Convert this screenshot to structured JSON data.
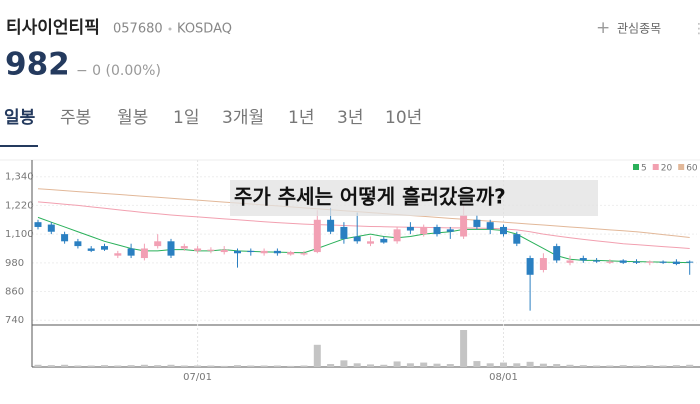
{
  "header": {
    "name": "티사이언티픽",
    "code": "057680",
    "market": "KOSDAQ",
    "watch": "관심종목",
    "price": "982",
    "change": "− 0 (0.00%)"
  },
  "tabs": [
    "일봉",
    "주봉",
    "월봉",
    "1일",
    "3개월",
    "1년",
    "3년",
    "10년"
  ],
  "chart_data": {
    "type": "candlestick",
    "annotation": "주가 추세는 어떻게 흘러갔을까?",
    "categories": [
      null,
      null,
      null,
      null,
      null,
      null,
      null,
      null,
      null,
      null,
      null,
      null,
      "07/01",
      null,
      null,
      null,
      null,
      null,
      null,
      null,
      null,
      null,
      null,
      null,
      null,
      null,
      null,
      null,
      null,
      null,
      null,
      null,
      null,
      null,
      null,
      "08/01",
      null,
      null,
      null,
      null,
      null,
      null,
      null,
      null,
      null,
      null,
      null,
      null,
      null,
      null
    ],
    "open": [
      1150,
      1140,
      1100,
      1070,
      1040,
      1050,
      1010,
      1040,
      1000,
      1050,
      1070,
      1040,
      1030,
      1030,
      1025,
      1030,
      1030,
      1020,
      1030,
      1015,
      1015,
      1025,
      1160,
      1130,
      1090,
      1060,
      1080,
      1070,
      1130,
      1100,
      1130,
      1120,
      1090,
      1160,
      1150,
      1130,
      1100,
      1000,
      950,
      1050,
      980,
      1000,
      990,
      980,
      990,
      985,
      980,
      985,
      985,
      985
    ],
    "high": [
      1160,
      1150,
      1110,
      1080,
      1050,
      1060,
      1030,
      1060,
      1060,
      1100,
      1080,
      1060,
      1050,
      1045,
      1050,
      1040,
      1040,
      1040,
      1040,
      1030,
      1030,
      1200,
      1210,
      1150,
      1190,
      1090,
      1090,
      1130,
      1150,
      1140,
      1140,
      1130,
      1220,
      1180,
      1160,
      1140,
      1110,
      1010,
      1020,
      1060,
      1010,
      1010,
      1000,
      995,
      995,
      995,
      990,
      990,
      995,
      990
    ],
    "low": [
      1120,
      1100,
      1060,
      1040,
      1025,
      1030,
      1000,
      1000,
      990,
      1040,
      1000,
      1030,
      1020,
      1020,
      1015,
      960,
      1010,
      1010,
      1010,
      1010,
      1010,
      1020,
      1100,
      1060,
      1060,
      1050,
      1060,
      1060,
      1100,
      1090,
      1090,
      1080,
      1080,
      1120,
      1100,
      1090,
      1050,
      780,
      940,
      980,
      970,
      980,
      980,
      975,
      975,
      975,
      970,
      975,
      970,
      930
    ],
    "close": [
      1130,
      1110,
      1070,
      1050,
      1030,
      1035,
      1020,
      1010,
      1040,
      1070,
      1010,
      1050,
      1040,
      1035,
      1035,
      1020,
      1025,
      1030,
      1020,
      1025,
      1020,
      1160,
      1110,
      1080,
      1070,
      1070,
      1065,
      1120,
      1115,
      1130,
      1100,
      1110,
      1180,
      1130,
      1120,
      1100,
      1060,
      930,
      1000,
      990,
      990,
      990,
      985,
      985,
      980,
      980,
      985,
      980,
      975,
      982
    ],
    "volume": [
      6,
      5,
      6,
      4,
      4,
      5,
      4,
      5,
      6,
      5,
      6,
      4,
      4,
      4,
      3,
      5,
      4,
      4,
      4,
      3,
      4,
      60,
      8,
      18,
      10,
      7,
      6,
      15,
      10,
      12,
      9,
      8,
      100,
      16,
      10,
      12,
      10,
      14,
      9,
      8,
      6,
      5,
      4,
      4,
      5,
      4,
      5,
      4,
      5,
      6
    ],
    "volume_ylim": [
      0,
      100
    ],
    "series": [
      {
        "name": "5",
        "color": "#2ab05a",
        "values": [
          1170,
          1150,
          1130,
          1110,
          1090,
          1070,
          1055,
          1040,
          1030,
          1030,
          1035,
          1035,
          1030,
          1030,
          1035,
          1030,
          1028,
          1026,
          1025,
          1023,
          1022,
          1040,
          1060,
          1080,
          1090,
          1100,
          1090,
          1085,
          1090,
          1100,
          1105,
          1110,
          1120,
          1120,
          1120,
          1115,
          1100,
          1070,
          1040,
          1010,
          995,
          990,
          990,
          988,
          986,
          985,
          984,
          983,
          982,
          981
        ]
      },
      {
        "name": "20",
        "color": "#f2a0b0",
        "values": [
          1235,
          1230,
          1225,
          1220,
          1214,
          1208,
          1202,
          1196,
          1190,
          1185,
          1180,
          1176,
          1172,
          1168,
          1164,
          1160,
          1156,
          1152,
          1148,
          1145,
          1142,
          1140,
          1138,
          1136,
          1134,
          1132,
          1131,
          1130,
          1129,
          1128,
          1127,
          1126,
          1126,
          1125,
          1124,
          1122,
          1118,
          1110,
          1100,
          1092,
          1085,
          1078,
          1072,
          1066,
          1060,
          1056,
          1052,
          1048,
          1044,
          1040
        ]
      },
      {
        "name": "60",
        "color": "#e2b899",
        "values": [
          1290,
          1286,
          1282,
          1278,
          1274,
          1270,
          1266,
          1262,
          1258,
          1254,
          1250,
          1246,
          1242,
          1238,
          1234,
          1230,
          1226,
          1222,
          1218,
          1214,
          1210,
          1206,
          1202,
          1198,
          1194,
          1190,
          1186,
          1182,
          1178,
          1174,
          1170,
          1166,
          1162,
          1158,
          1154,
          1150,
          1146,
          1142,
          1138,
          1134,
          1130,
          1126,
          1122,
          1118,
          1114,
          1110,
          1104,
          1098,
          1092,
          1086
        ]
      }
    ],
    "up_color": "#f2a0b4",
    "down_color": "#2a7fc1",
    "volume_color": "#c4c4c4",
    "ylim": [
      720,
      1410
    ],
    "yticks": [
      {
        "value": 740,
        "label": "740"
      },
      {
        "value": 860,
        "label": "860"
      },
      {
        "value": 980,
        "label": "980"
      },
      {
        "value": 1100,
        "label": "1,100"
      },
      {
        "value": 1220,
        "label": "1,220"
      },
      {
        "value": 1340,
        "label": "1,340"
      }
    ],
    "grid": true,
    "legend": "top-right"
  }
}
